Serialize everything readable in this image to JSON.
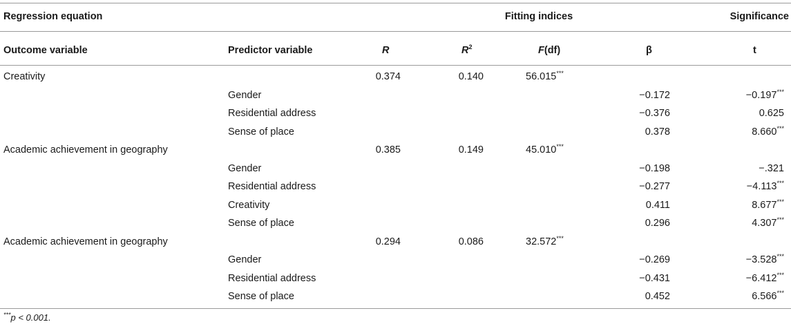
{
  "header": {
    "regression_equation": "Regression equation",
    "fitting_indices": "Fitting indices",
    "significance": "Significance"
  },
  "columns": {
    "outcome": "Outcome variable",
    "predictor": "Predictor variable",
    "r": "R",
    "r2_base": "R",
    "r2_sup": "2",
    "f_letter": "F",
    "f_rest": "(df)",
    "beta": "β",
    "t": "t"
  },
  "rows": [
    {
      "outcome": "Creativity",
      "predictor": "",
      "r": "0.374",
      "r2": "0.140",
      "f": "56.015",
      "f_sig": "***",
      "beta": "",
      "t": "",
      "t_sig": ""
    },
    {
      "outcome": "",
      "predictor": "Gender",
      "r": "",
      "r2": "",
      "f": "",
      "f_sig": "",
      "beta": "−0.172",
      "t": "−0.197",
      "t_sig": "***"
    },
    {
      "outcome": "",
      "predictor": "Residential address",
      "r": "",
      "r2": "",
      "f": "",
      "f_sig": "",
      "beta": "−0.376",
      "t": "0.625",
      "t_sig": ""
    },
    {
      "outcome": "",
      "predictor": "Sense of place",
      "r": "",
      "r2": "",
      "f": "",
      "f_sig": "",
      "beta": "0.378",
      "t": "8.660",
      "t_sig": "***"
    },
    {
      "outcome": "Academic achievement in geography",
      "predictor": "",
      "r": "0.385",
      "r2": "0.149",
      "f": "45.010",
      "f_sig": "***",
      "beta": "",
      "t": "",
      "t_sig": ""
    },
    {
      "outcome": "",
      "predictor": "Gender",
      "r": "",
      "r2": "",
      "f": "",
      "f_sig": "",
      "beta": "−0.198",
      "t": "−.321",
      "t_sig": ""
    },
    {
      "outcome": "",
      "predictor": "Residential address",
      "r": "",
      "r2": "",
      "f": "",
      "f_sig": "",
      "beta": "−0.277",
      "t": "−4.113",
      "t_sig": "***"
    },
    {
      "outcome": "",
      "predictor": "Creativity",
      "r": "",
      "r2": "",
      "f": "",
      "f_sig": "",
      "beta": "0.411",
      "t": "8.677",
      "t_sig": "***"
    },
    {
      "outcome": "",
      "predictor": "Sense of place",
      "r": "",
      "r2": "",
      "f": "",
      "f_sig": "",
      "beta": "0.296",
      "t": "4.307",
      "t_sig": "***"
    },
    {
      "outcome": "Academic achievement in geography",
      "predictor": "",
      "r": "0.294",
      "r2": "0.086",
      "f": "32.572",
      "f_sig": "***",
      "beta": "",
      "t": "",
      "t_sig": ""
    },
    {
      "outcome": "",
      "predictor": "Gender",
      "r": "",
      "r2": "",
      "f": "",
      "f_sig": "",
      "beta": "−0.269",
      "t": "−3.528",
      "t_sig": "***"
    },
    {
      "outcome": "",
      "predictor": "Residential address",
      "r": "",
      "r2": "",
      "f": "",
      "f_sig": "",
      "beta": "−0.431",
      "t": "−6.412",
      "t_sig": "***"
    },
    {
      "outcome": "",
      "predictor": "Sense of place",
      "r": "",
      "r2": "",
      "f": "",
      "f_sig": "",
      "beta": "0.452",
      "t": "6.566",
      "t_sig": "***"
    }
  ],
  "footnote": {
    "stars": "***",
    "text": "p < 0.001."
  }
}
